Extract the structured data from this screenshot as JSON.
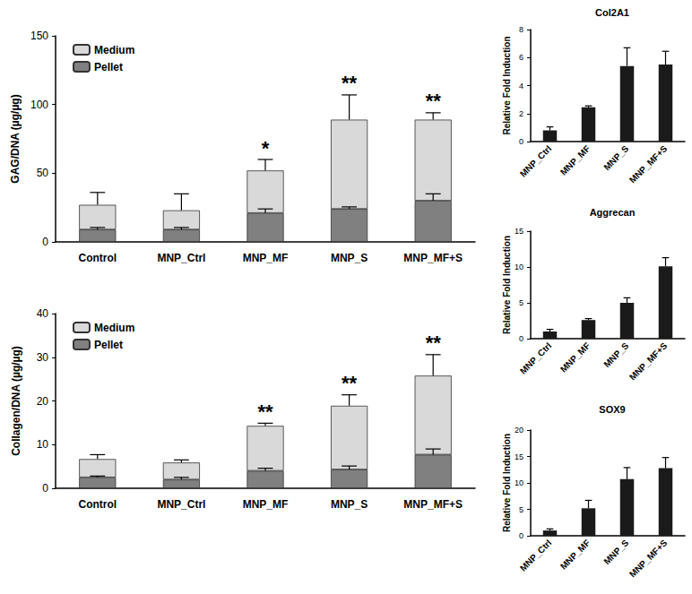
{
  "chart_data": [
    {
      "type": "bar",
      "stacked": true,
      "legend": "upper left",
      "grid": false,
      "y_label": "GAG/DNA (µg/µg)",
      "categories": [
        "Control",
        "MNP_Ctrl",
        "MNP_MF",
        "MNP_S",
        "MNP_MF+S"
      ],
      "ylim": [
        0,
        150
      ],
      "yticks": [
        0,
        50,
        100,
        150
      ],
      "series": [
        {
          "name": "Pellet",
          "color": "#808080",
          "values": [
            9,
            9,
            21,
            24,
            30
          ],
          "errors": [
            1.5,
            1.5,
            3,
            1.5,
            5
          ]
        },
        {
          "name": "Medium",
          "color": "#d9d9d9",
          "values": [
            18,
            14,
            31,
            65,
            59
          ],
          "errors": [
            9,
            12,
            8,
            18,
            5
          ]
        }
      ],
      "significance": [
        null,
        null,
        "*",
        "**",
        "**"
      ]
    },
    {
      "type": "bar",
      "stacked": true,
      "legend": "upper left",
      "grid": false,
      "y_label": "Collagen/DNA (µg/µg)",
      "categories": [
        "Control",
        "MNP_Ctrl",
        "MNP_MF",
        "MNP_S",
        "MNP_MF+S"
      ],
      "ylim": [
        0,
        40
      ],
      "yticks": [
        0,
        10,
        20,
        30,
        40
      ],
      "series": [
        {
          "name": "Pellet",
          "color": "#808080",
          "values": [
            2.5,
            2,
            4,
            4.3,
            7.7
          ],
          "errors": [
            0.3,
            0.5,
            0.6,
            0.8,
            1.3
          ]
        },
        {
          "name": "Medium",
          "color": "#d9d9d9",
          "values": [
            4.2,
            3.9,
            10.3,
            14.6,
            18.1
          ],
          "errors": [
            1,
            0.6,
            0.6,
            2.5,
            4.8
          ]
        }
      ],
      "significance": [
        null,
        null,
        "**",
        "**",
        "**"
      ]
    },
    {
      "type": "bar",
      "title": "Col2A1",
      "grid": false,
      "y_label": "Relative Fold Induction",
      "categories": [
        "MNP_Ctrl",
        "MNP_MF",
        "MNP_S",
        "MNP_MF+S"
      ],
      "ylim": [
        0,
        8
      ],
      "yticks": [
        0,
        2,
        4,
        6,
        8
      ],
      "series": [
        {
          "name": "Col2A1",
          "color": "#1a1a1a",
          "values": [
            0.8,
            2.45,
            5.4,
            5.5
          ],
          "errors": [
            0.25,
            0.1,
            1.3,
            0.95
          ]
        }
      ]
    },
    {
      "type": "bar",
      "title": "Aggrecan",
      "grid": false,
      "y_label": "Relative Fold Induction",
      "categories": [
        "MNP_Ctrl",
        "MNP_MF",
        "MNP_S",
        "MNP_MF+S"
      ],
      "ylim": [
        0,
        15
      ],
      "yticks": [
        0,
        5,
        10,
        15
      ],
      "series": [
        {
          "name": "Aggrecan",
          "color": "#1a1a1a",
          "values": [
            1.0,
            2.6,
            5.0,
            10.1
          ],
          "errors": [
            0.3,
            0.2,
            0.7,
            1.2
          ]
        }
      ]
    },
    {
      "type": "bar",
      "title": "SOX9",
      "grid": false,
      "y_label": "Relative Fold Induction",
      "categories": [
        "MNP_Ctrl",
        "MNP_MF",
        "MNP_S",
        "MNP_MF+S"
      ],
      "ylim": [
        0,
        20
      ],
      "yticks": [
        0,
        5,
        10,
        15,
        20
      ],
      "series": [
        {
          "name": "SOX9",
          "color": "#1a1a1a",
          "values": [
            1.0,
            5.2,
            10.7,
            12.8
          ],
          "errors": [
            0.3,
            1.5,
            2.2,
            2.0
          ]
        }
      ]
    }
  ]
}
